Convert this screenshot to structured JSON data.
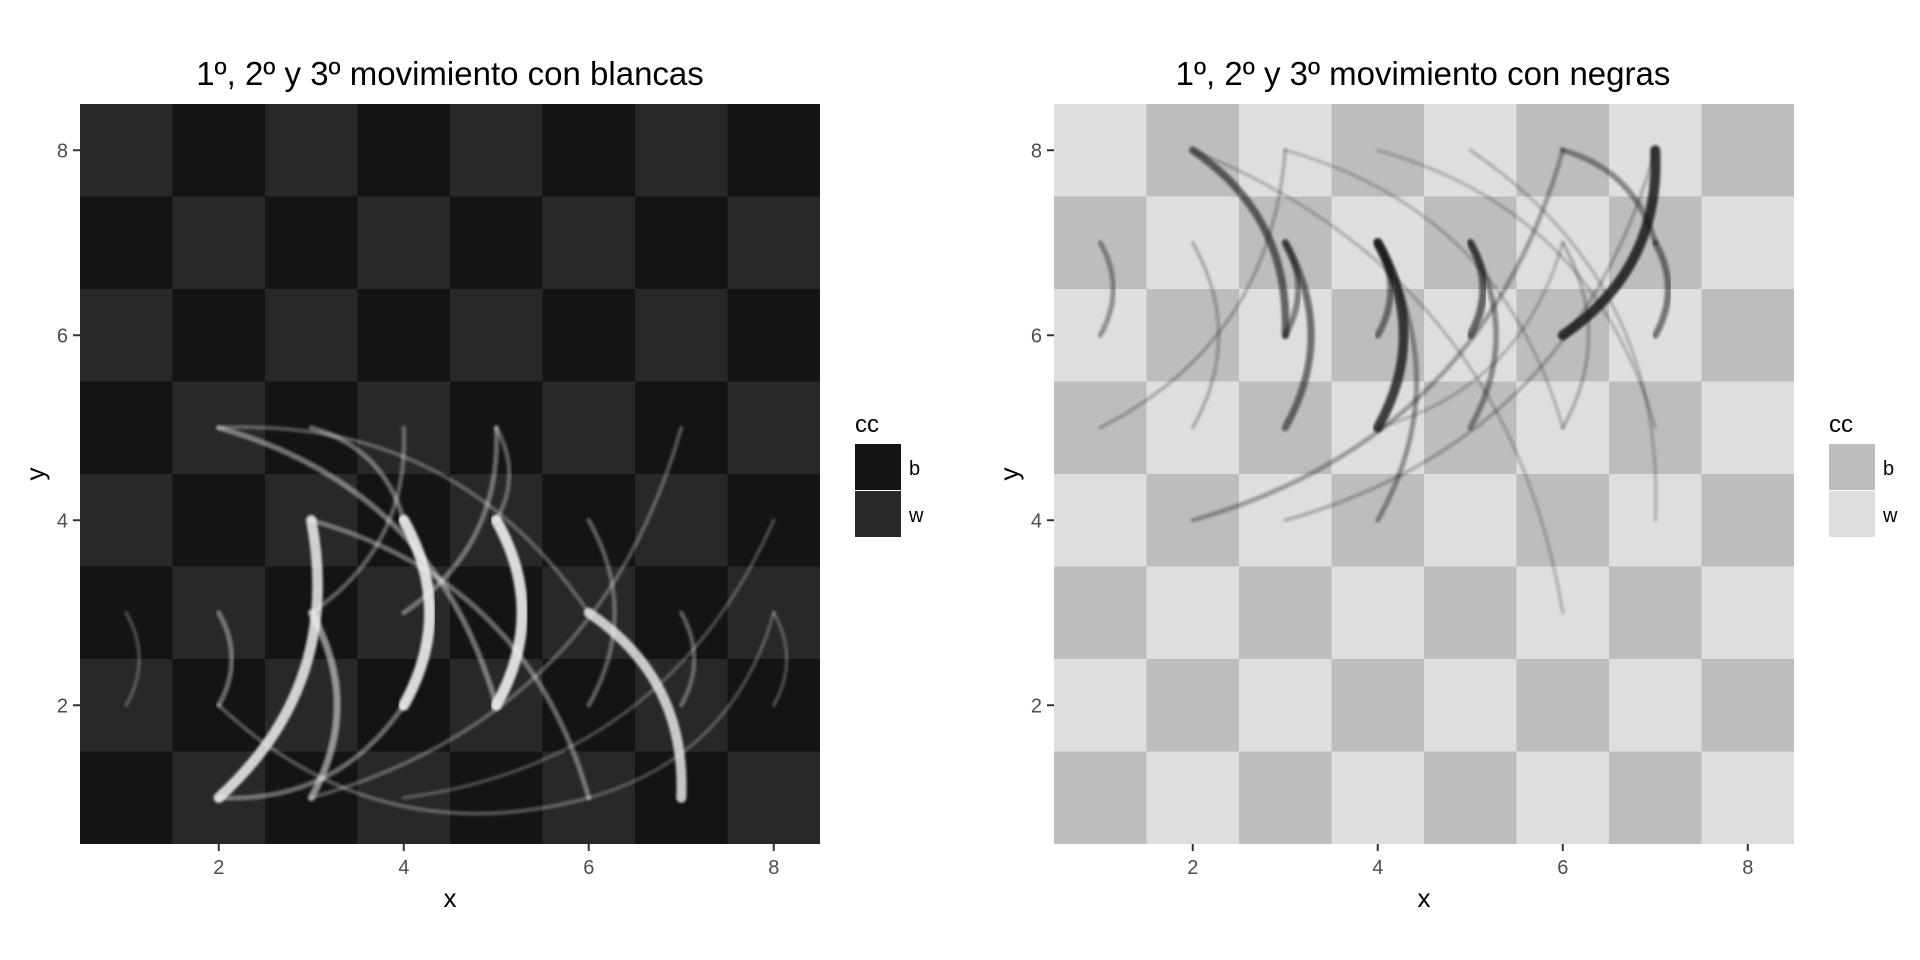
{
  "chart_data": [
    {
      "type": "heatmap",
      "title": "1º, 2º y 3º movimiento con blancas",
      "xlabel": "x",
      "ylabel": "y",
      "xlim": [
        0.5,
        8.5
      ],
      "ylim": [
        0.5,
        8.5
      ],
      "x_ticks": [
        2,
        4,
        6,
        8
      ],
      "y_ticks": [
        2,
        4,
        6,
        8
      ],
      "grid": true,
      "legend": {
        "title": "cc",
        "position": "right",
        "entries": [
          {
            "label": "b",
            "color": "#141414"
          },
          {
            "label": "w",
            "color": "#282828"
          }
        ]
      },
      "board_colors": {
        "b": "#141414",
        "w": "#282828"
      },
      "move_color": "#f2f2f2",
      "moves": [
        {
          "from": [
            2,
            1
          ],
          "to": [
            3,
            4
          ],
          "weight": 0.85
        },
        {
          "from": [
            3,
            1
          ],
          "to": [
            3,
            3
          ],
          "weight": 0.5
        },
        {
          "from": [
            4,
            2
          ],
          "to": [
            4,
            4
          ],
          "weight": 0.9
        },
        {
          "from": [
            5,
            2
          ],
          "to": [
            5,
            4
          ],
          "weight": 0.9
        },
        {
          "from": [
            7,
            1
          ],
          "to": [
            6,
            3
          ],
          "weight": 0.8
        },
        {
          "from": [
            6,
            1
          ],
          "to": [
            3,
            4
          ],
          "weight": 0.3
        },
        {
          "from": [
            5,
            2
          ],
          "to": [
            2,
            5
          ],
          "weight": 0.35
        },
        {
          "from": [
            6,
            3
          ],
          "to": [
            2,
            5
          ],
          "weight": 0.2
        },
        {
          "from": [
            4,
            3
          ],
          "to": [
            5,
            5
          ],
          "weight": 0.3
        },
        {
          "from": [
            4,
            4
          ],
          "to": [
            3,
            5
          ],
          "weight": 0.3
        },
        {
          "from": [
            5,
            4
          ],
          "to": [
            5,
            5
          ],
          "weight": 0.25
        },
        {
          "from": [
            3,
            3
          ],
          "to": [
            4,
            5
          ],
          "weight": 0.25
        },
        {
          "from": [
            2,
            2
          ],
          "to": [
            2,
            3
          ],
          "weight": 0.3
        },
        {
          "from": [
            6,
            2
          ],
          "to": [
            6,
            4
          ],
          "weight": 0.25
        },
        {
          "from": [
            7,
            2
          ],
          "to": [
            7,
            3
          ],
          "weight": 0.25
        },
        {
          "from": [
            8,
            2
          ],
          "to": [
            8,
            3
          ],
          "weight": 0.15
        },
        {
          "from": [
            1,
            2
          ],
          "to": [
            1,
            3
          ],
          "weight": 0.15
        },
        {
          "from": [
            2,
            1
          ],
          "to": [
            4,
            2
          ],
          "weight": 0.3
        },
        {
          "from": [
            3,
            1
          ],
          "to": [
            7,
            5
          ],
          "weight": 0.2
        },
        {
          "from": [
            4,
            1
          ],
          "to": [
            8,
            4
          ],
          "weight": 0.15
        },
        {
          "from": [
            6,
            1
          ],
          "to": [
            8,
            3
          ],
          "weight": 0.15
        },
        {
          "from": [
            2,
            2
          ],
          "to": [
            6,
            1
          ],
          "weight": 0.2
        }
      ]
    },
    {
      "type": "heatmap",
      "title": "1º, 2º y 3º movimiento con negras",
      "xlabel": "x",
      "ylabel": "y",
      "xlim": [
        0.5,
        8.5
      ],
      "ylim": [
        0.5,
        8.5
      ],
      "x_ticks": [
        2,
        4,
        6,
        8
      ],
      "y_ticks": [
        2,
        4,
        6,
        8
      ],
      "grid": true,
      "legend": {
        "title": "cc",
        "position": "right",
        "entries": [
          {
            "label": "b",
            "color": "#bdbdbd"
          },
          {
            "label": "w",
            "color": "#dedede"
          }
        ]
      },
      "board_colors": {
        "b": "#bdbdbd",
        "w": "#dedede"
      },
      "move_color": "#111111",
      "moves": [
        {
          "from": [
            7,
            8
          ],
          "to": [
            6,
            6
          ],
          "weight": 0.8
        },
        {
          "from": [
            4,
            7
          ],
          "to": [
            4,
            5
          ],
          "weight": 0.75
        },
        {
          "from": [
            5,
            7
          ],
          "to": [
            5,
            6
          ],
          "weight": 0.55
        },
        {
          "from": [
            5,
            7
          ],
          "to": [
            5,
            5
          ],
          "weight": 0.35
        },
        {
          "from": [
            3,
            7
          ],
          "to": [
            3,
            5
          ],
          "weight": 0.5
        },
        {
          "from": [
            3,
            7
          ],
          "to": [
            3,
            6
          ],
          "weight": 0.4
        },
        {
          "from": [
            2,
            8
          ],
          "to": [
            3,
            6
          ],
          "weight": 0.55
        },
        {
          "from": [
            4,
            7
          ],
          "to": [
            4,
            6
          ],
          "weight": 0.45
        },
        {
          "from": [
            7,
            7
          ],
          "to": [
            7,
            6
          ],
          "weight": 0.45
        },
        {
          "from": [
            6,
            8
          ],
          "to": [
            7,
            7
          ],
          "weight": 0.35
        },
        {
          "from": [
            1,
            7
          ],
          "to": [
            1,
            6
          ],
          "weight": 0.3
        },
        {
          "from": [
            3,
            8
          ],
          "to": [
            1,
            5
          ],
          "weight": 0.15
        },
        {
          "from": [
            6,
            8
          ],
          "to": [
            2,
            4
          ],
          "weight": 0.25
        },
        {
          "from": [
            3,
            8
          ],
          "to": [
            6,
            5
          ],
          "weight": 0.12
        },
        {
          "from": [
            2,
            7
          ],
          "to": [
            2,
            5
          ],
          "weight": 0.15
        },
        {
          "from": [
            6,
            7
          ],
          "to": [
            6,
            5
          ],
          "weight": 0.15
        },
        {
          "from": [
            4,
            8
          ],
          "to": [
            7,
            5
          ],
          "weight": 0.12
        },
        {
          "from": [
            2,
            8
          ],
          "to": [
            6,
            3
          ],
          "weight": 0.12
        },
        {
          "from": [
            4,
            7
          ],
          "to": [
            4,
            4
          ],
          "weight": 0.3
        },
        {
          "from": [
            7,
            8
          ],
          "to": [
            3,
            4
          ],
          "weight": 0.15
        },
        {
          "from": [
            5,
            8
          ],
          "to": [
            7,
            4
          ],
          "weight": 0.12
        },
        {
          "from": [
            6,
            7
          ],
          "to": [
            4,
            5
          ],
          "weight": 0.12
        }
      ]
    }
  ]
}
